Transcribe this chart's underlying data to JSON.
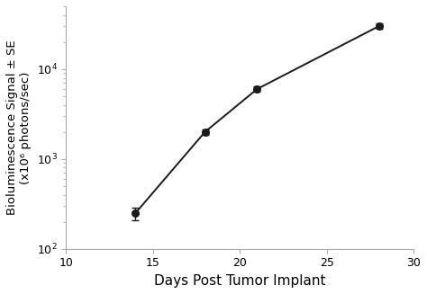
{
  "x": [
    14,
    18,
    21,
    28
  ],
  "y": [
    250,
    2000,
    6000,
    30000
  ],
  "yerr_lower": [
    40,
    150,
    400,
    2000
  ],
  "yerr_upper": [
    40,
    150,
    400,
    2000
  ],
  "xlim": [
    10,
    30
  ],
  "ylim": [
    100,
    50000
  ],
  "xlabel": "Days Post Tumor Implant",
  "ylabel": "Bioluminescence Signal ± SE\n(x10⁶ photons/sec)",
  "line_color": "#1a1a1a",
  "marker_color": "#1a1a1a",
  "background_color": "#ffffff",
  "xlabel_fontsize": 11,
  "ylabel_fontsize": 9.5,
  "tick_fontsize": 9,
  "xticks": [
    10,
    15,
    20,
    25,
    30
  ],
  "yticks": [
    100,
    1000,
    10000
  ],
  "marker_size": 5.5,
  "line_width": 1.4,
  "spine_color": "#aaaaaa"
}
